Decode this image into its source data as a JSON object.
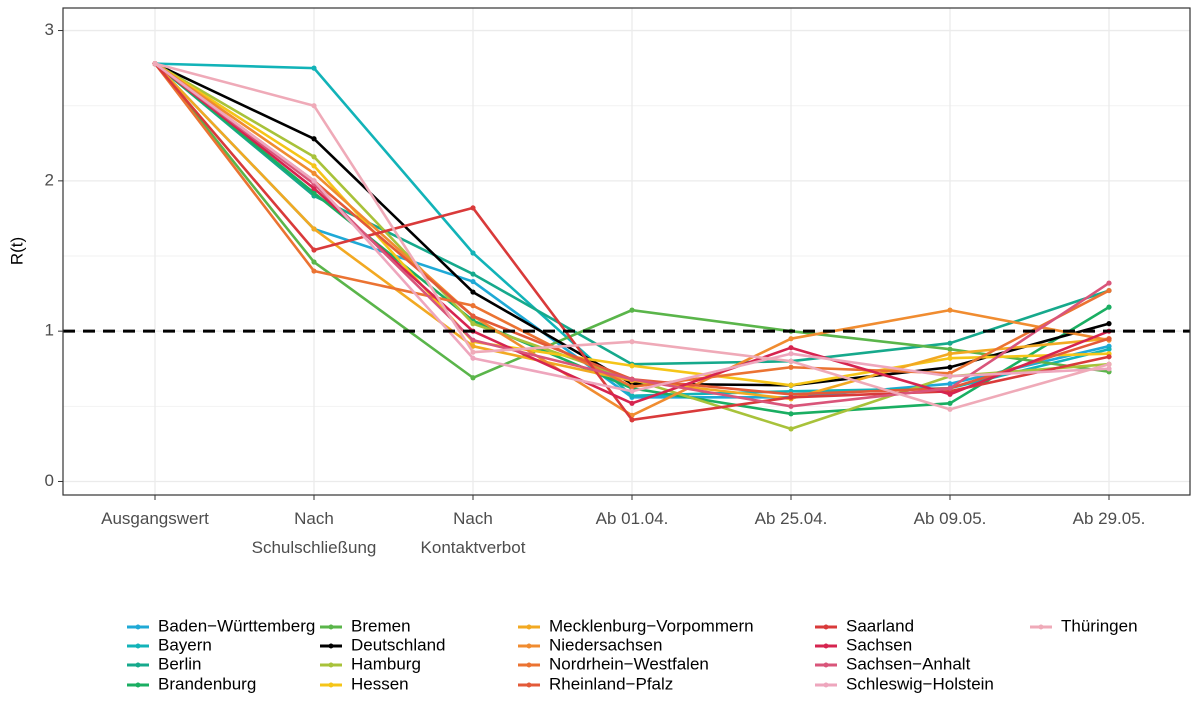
{
  "chart_data": {
    "type": "line",
    "y_label": "R(t)",
    "categories": [
      "Ausgangswert",
      "Nach\nSchulschließung",
      "Nach\nKontaktverbot",
      "Ab 01.04.",
      "Ab 25.04.",
      "Ab 09.05.",
      "Ab 29.05."
    ],
    "ylim": [
      -0.09,
      3.15
    ],
    "yticks": [
      0,
      1,
      2,
      3
    ],
    "minor_yticks": [
      0.5,
      1.5,
      2.5
    ],
    "grid": true,
    "hline": 1,
    "legend": "bottom",
    "series": [
      {
        "name": "Baden−Württemberg",
        "color": "#1fa9d6",
        "values": [
          2.78,
          1.68,
          1.33,
          0.56,
          0.56,
          0.65,
          0.9
        ]
      },
      {
        "name": "Bayern",
        "color": "#12b3b8",
        "values": [
          2.78,
          2.75,
          1.52,
          0.57,
          0.6,
          0.62,
          0.88
        ]
      },
      {
        "name": "Berlin",
        "color": "#16a98c",
        "values": [
          2.78,
          1.9,
          1.38,
          0.78,
          0.8,
          0.92,
          1.27
        ]
      },
      {
        "name": "Brandenburg",
        "color": "#1aae62",
        "values": [
          2.78,
          1.92,
          1.07,
          0.62,
          0.45,
          0.52,
          1.16
        ]
      },
      {
        "name": "Bremen",
        "color": "#5ab54a",
        "values": [
          2.78,
          1.46,
          0.69,
          1.14,
          1.0,
          0.88,
          0.73
        ]
      },
      {
        "name": "Deutschland",
        "color": "#000000",
        "values": [
          2.78,
          2.28,
          1.26,
          0.65,
          0.64,
          0.76,
          1.05
        ]
      },
      {
        "name": "Hamburg",
        "color": "#a8c23a",
        "values": [
          2.78,
          2.16,
          1.05,
          0.68,
          0.35,
          0.7,
          0.78
        ]
      },
      {
        "name": "Hessen",
        "color": "#f5c518",
        "values": [
          2.78,
          2.1,
          0.93,
          0.77,
          0.64,
          0.82,
          0.85
        ]
      },
      {
        "name": "Mecklenburg−Vorpommern",
        "color": "#f2a922",
        "values": [
          2.78,
          1.68,
          0.9,
          0.67,
          0.55,
          0.85,
          0.95
        ]
      },
      {
        "name": "Niedersachsen",
        "color": "#f08c30",
        "values": [
          2.78,
          2.05,
          1.1,
          0.44,
          0.95,
          1.14,
          0.94
        ]
      },
      {
        "name": "Nordrhein−Westfalen",
        "color": "#eb7332",
        "values": [
          2.78,
          1.4,
          1.17,
          0.63,
          0.76,
          0.72,
          1.27
        ]
      },
      {
        "name": "Rheinland−Pfalz",
        "color": "#e35a38",
        "values": [
          2.78,
          2.0,
          1.1,
          0.68,
          0.58,
          0.62,
          0.95
        ]
      },
      {
        "name": "Saarland",
        "color": "#d93a3a",
        "values": [
          2.78,
          1.54,
          1.82,
          0.41,
          0.56,
          0.6,
          0.83
        ]
      },
      {
        "name": "Sachsen",
        "color": "#d6244f",
        "values": [
          2.78,
          1.95,
          1.0,
          0.52,
          0.89,
          0.58,
          1.0
        ]
      },
      {
        "name": "Sachsen−Anhalt",
        "color": "#d9557a",
        "values": [
          2.78,
          1.98,
          0.94,
          0.68,
          0.5,
          0.62,
          1.32
        ]
      },
      {
        "name": "Schleswig−Holstein",
        "color": "#eea6bd",
        "values": [
          2.78,
          2.0,
          0.82,
          0.6,
          0.85,
          0.7,
          0.75
        ]
      },
      {
        "name": "Thüringen",
        "color": "#efaab8",
        "values": [
          2.78,
          2.5,
          0.86,
          0.93,
          0.8,
          0.48,
          0.78
        ]
      }
    ]
  }
}
